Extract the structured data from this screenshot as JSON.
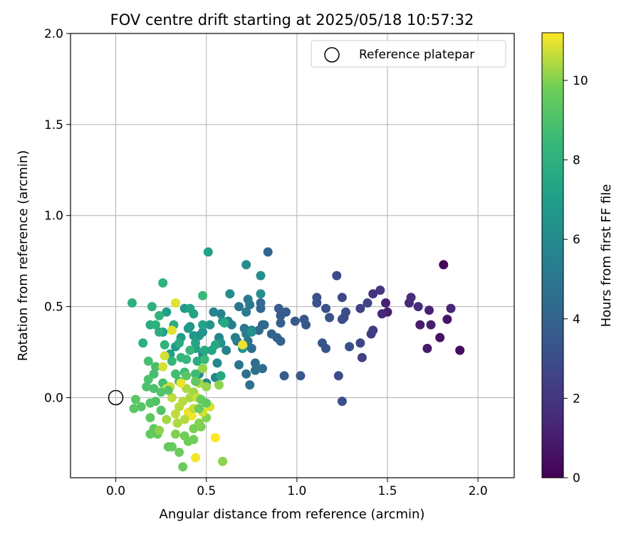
{
  "chart_data": {
    "type": "scatter",
    "title": "FOV centre drift starting at 2025/05/18 10:57:32",
    "xlabel": "Angular distance from reference (arcmin)",
    "ylabel": "Rotation from reference (arcmin)",
    "xlim": [
      -0.25,
      2.2
    ],
    "ylim": [
      -0.44,
      2.0
    ],
    "xticks": [
      0.0,
      0.5,
      1.0,
      1.5,
      2.0
    ],
    "xtick_labels": [
      "0.0",
      "0.5",
      "1.0",
      "1.5",
      "2.0"
    ],
    "yticks": [
      0.0,
      0.5,
      1.0,
      1.5,
      2.0
    ],
    "ytick_labels": [
      "0.0",
      "0.5",
      "1.0",
      "1.5",
      "2.0"
    ],
    "grid": true,
    "legend": {
      "position": "top-right",
      "entries": [
        "Reference platepar"
      ]
    },
    "colorbar": {
      "label": "Hours from first FF file",
      "range": [
        0,
        11.2
      ],
      "ticks": [
        0,
        2,
        4,
        6,
        8,
        10
      ],
      "tick_labels": [
        "0",
        "2",
        "4",
        "6",
        "8",
        "10"
      ],
      "colormap": "viridis"
    },
    "reference_point": {
      "x": 0.0,
      "y": 0.0
    },
    "points": [
      [
        1.81,
        0.73,
        0.2
      ],
      [
        1.9,
        0.26,
        0.4
      ],
      [
        1.79,
        0.33,
        0.6
      ],
      [
        1.83,
        0.43,
        0.8
      ],
      [
        1.72,
        0.27,
        0.9
      ],
      [
        1.68,
        0.4,
        1.0
      ],
      [
        1.74,
        0.4,
        1.1
      ],
      [
        1.73,
        0.48,
        1.2
      ],
      [
        1.85,
        0.49,
        1.3
      ],
      [
        1.62,
        0.52,
        1.5
      ],
      [
        1.67,
        0.5,
        1.6
      ],
      [
        1.63,
        0.55,
        1.6
      ],
      [
        1.5,
        0.47,
        1.0
      ],
      [
        1.49,
        0.52,
        1.2
      ],
      [
        1.47,
        0.46,
        1.4
      ],
      [
        1.42,
        0.57,
        1.9
      ],
      [
        1.46,
        0.59,
        2.0
      ],
      [
        1.41,
        0.35,
        2.2
      ],
      [
        1.42,
        0.37,
        2.3
      ],
      [
        1.35,
        0.49,
        2.4
      ],
      [
        1.36,
        0.22,
        2.5
      ],
      [
        1.39,
        0.52,
        2.6
      ],
      [
        1.35,
        0.3,
        2.7
      ],
      [
        1.25,
        0.55,
        2.7
      ],
      [
        1.26,
        0.44,
        2.8
      ],
      [
        1.27,
        0.47,
        2.9
      ],
      [
        1.22,
        0.67,
        2.9
      ],
      [
        1.25,
        0.43,
        3.0
      ],
      [
        1.23,
        0.12,
        3.0
      ],
      [
        1.25,
        -0.02,
        3.1
      ],
      [
        1.29,
        0.28,
        3.1
      ],
      [
        1.18,
        0.44,
        3.2
      ],
      [
        1.16,
        0.49,
        3.2
      ],
      [
        1.11,
        0.52,
        3.3
      ],
      [
        1.11,
        0.55,
        3.3
      ],
      [
        1.16,
        0.27,
        3.3
      ],
      [
        1.14,
        0.3,
        3.4
      ],
      [
        1.05,
        0.4,
        3.4
      ],
      [
        1.04,
        0.43,
        3.4
      ],
      [
        0.99,
        0.42,
        3.5
      ],
      [
        1.02,
        0.12,
        3.5
      ],
      [
        0.93,
        0.12,
        3.6
      ],
      [
        0.94,
        0.47,
        3.6
      ],
      [
        0.91,
        0.45,
        3.7
      ],
      [
        0.9,
        0.49,
        3.7
      ],
      [
        0.91,
        0.41,
        3.8
      ],
      [
        0.91,
        0.31,
        3.9
      ],
      [
        0.89,
        0.33,
        3.9
      ],
      [
        0.86,
        0.35,
        4.0
      ],
      [
        0.84,
        0.8,
        4.1
      ],
      [
        0.81,
        0.4,
        4.1
      ],
      [
        0.8,
        0.49,
        4.2
      ],
      [
        0.82,
        0.4,
        4.3
      ],
      [
        0.8,
        0.52,
        4.3
      ],
      [
        0.79,
        0.37,
        4.4
      ],
      [
        0.81,
        0.16,
        4.4
      ],
      [
        0.77,
        0.19,
        4.5
      ],
      [
        0.77,
        0.15,
        4.6
      ],
      [
        0.75,
        0.27,
        4.6
      ],
      [
        0.72,
        0.13,
        4.7
      ],
      [
        0.74,
        0.07,
        4.8
      ],
      [
        0.73,
        0.31,
        4.8
      ],
      [
        0.68,
        0.18,
        4.9
      ],
      [
        0.68,
        0.5,
        5.0
      ],
      [
        0.67,
        0.31,
        5.0
      ],
      [
        0.71,
        0.38,
        5.0
      ],
      [
        0.74,
        0.51,
        5.1
      ],
      [
        0.72,
        0.47,
        5.2
      ],
      [
        0.73,
        0.54,
        5.2
      ],
      [
        0.72,
        0.35,
        5.3
      ],
      [
        0.75,
        0.37,
        5.3
      ],
      [
        0.66,
        0.33,
        5.4
      ],
      [
        0.64,
        0.4,
        5.4
      ],
      [
        0.62,
        0.42,
        5.5
      ],
      [
        0.58,
        0.46,
        5.5
      ],
      [
        0.57,
        0.33,
        5.6
      ],
      [
        0.54,
        0.47,
        5.6
      ],
      [
        0.61,
        0.26,
        5.7
      ],
      [
        0.56,
        0.19,
        5.8
      ],
      [
        0.55,
        0.11,
        5.8
      ],
      [
        0.5,
        0.08,
        5.9
      ],
      [
        0.46,
        0.13,
        6.0
      ],
      [
        0.48,
        0.24,
        6.0
      ],
      [
        0.63,
        0.57,
        6.1
      ],
      [
        0.72,
        0.73,
        6.1
      ],
      [
        0.8,
        0.67,
        6.2
      ],
      [
        0.8,
        0.57,
        6.2
      ],
      [
        0.75,
        0.36,
        6.3
      ],
      [
        0.7,
        0.27,
        6.3
      ],
      [
        0.58,
        0.3,
        6.4
      ],
      [
        0.59,
        0.42,
        6.4
      ],
      [
        0.52,
        0.4,
        6.5
      ],
      [
        0.48,
        0.36,
        6.5
      ],
      [
        0.46,
        0.34,
        6.6
      ],
      [
        0.41,
        0.39,
        6.6
      ],
      [
        0.43,
        0.34,
        6.7
      ],
      [
        0.38,
        0.49,
        6.8
      ],
      [
        0.4,
        0.38,
        6.8
      ],
      [
        0.36,
        0.33,
        6.9
      ],
      [
        0.33,
        0.28,
        6.9
      ],
      [
        0.3,
        0.24,
        7.0
      ],
      [
        0.28,
        0.47,
        7.0
      ],
      [
        0.26,
        0.36,
        7.1
      ],
      [
        0.44,
        0.27,
        7.1
      ],
      [
        0.51,
        0.8,
        7.2
      ],
      [
        0.48,
        0.4,
        7.2
      ],
      [
        0.43,
        0.46,
        7.3
      ],
      [
        0.41,
        0.49,
        7.3
      ],
      [
        0.44,
        0.3,
        7.4
      ],
      [
        0.53,
        0.26,
        7.4
      ],
      [
        0.55,
        0.29,
        7.5
      ],
      [
        0.58,
        0.12,
        7.5
      ],
      [
        0.6,
        0.41,
        7.6
      ],
      [
        0.49,
        0.26,
        7.6
      ],
      [
        0.45,
        0.2,
        7.7
      ],
      [
        0.35,
        0.3,
        7.7
      ],
      [
        0.32,
        0.4,
        7.8
      ],
      [
        0.24,
        0.36,
        7.8
      ],
      [
        0.19,
        0.4,
        7.9
      ],
      [
        0.15,
        0.3,
        7.9
      ],
      [
        0.09,
        0.52,
        8.0
      ],
      [
        0.2,
        0.5,
        8.0
      ],
      [
        0.26,
        0.63,
        8.1
      ],
      [
        0.22,
        0.4,
        8.1
      ],
      [
        0.24,
        0.45,
        8.2
      ],
      [
        0.27,
        0.29,
        8.2
      ],
      [
        0.31,
        0.2,
        8.3
      ],
      [
        0.36,
        0.22,
        8.3
      ],
      [
        0.39,
        0.21,
        8.4
      ],
      [
        0.41,
        0.26,
        8.4
      ],
      [
        0.48,
        0.56,
        8.5
      ],
      [
        0.49,
        0.21,
        8.5
      ],
      [
        0.44,
        0.13,
        8.6
      ],
      [
        0.38,
        0.14,
        8.6
      ],
      [
        0.35,
        0.09,
        8.7
      ],
      [
        0.33,
        0.13,
        8.7
      ],
      [
        0.26,
        0.08,
        8.8
      ],
      [
        0.21,
        0.13,
        8.8
      ],
      [
        0.22,
        0.17,
        8.9
      ],
      [
        0.18,
        0.2,
        8.9
      ],
      [
        0.18,
        0.1,
        9.0
      ],
      [
        0.17,
        0.06,
        9.0
      ],
      [
        0.22,
        -0.02,
        9.1
      ],
      [
        0.25,
        -0.07,
        9.1
      ],
      [
        0.19,
        -0.03,
        9.2
      ],
      [
        0.14,
        -0.05,
        9.2
      ],
      [
        0.1,
        -0.06,
        9.3
      ],
      [
        0.11,
        -0.01,
        9.3
      ],
      [
        0.19,
        -0.11,
        9.4
      ],
      [
        0.21,
        -0.17,
        9.4
      ],
      [
        0.23,
        -0.2,
        9.5
      ],
      [
        0.19,
        -0.2,
        9.5
      ],
      [
        0.29,
        -0.27,
        9.6
      ],
      [
        0.31,
        -0.27,
        9.6
      ],
      [
        0.35,
        -0.3,
        9.7
      ],
      [
        0.37,
        -0.38,
        9.7
      ],
      [
        0.38,
        -0.21,
        9.8
      ],
      [
        0.43,
        -0.23,
        9.8
      ],
      [
        0.43,
        -0.17,
        9.9
      ],
      [
        0.47,
        -0.16,
        9.9
      ],
      [
        0.46,
        -0.14,
        10.0
      ],
      [
        0.5,
        -0.11,
        10.0
      ],
      [
        0.59,
        -0.35,
        10.1
      ],
      [
        0.57,
        0.07,
        10.1
      ],
      [
        0.48,
        0.16,
        10.2
      ],
      [
        0.5,
        0.06,
        10.2
      ],
      [
        0.46,
        0.08,
        10.3
      ],
      [
        0.43,
        0.03,
        10.3
      ],
      [
        0.41,
        0.0,
        10.4
      ],
      [
        0.39,
        0.05,
        10.4
      ],
      [
        0.37,
        -0.02,
        10.5
      ],
      [
        0.35,
        -0.05,
        10.5
      ],
      [
        0.33,
        -0.09,
        10.6
      ],
      [
        0.31,
        0.0,
        10.6
      ],
      [
        0.3,
        0.06,
        10.7
      ],
      [
        0.28,
        0.05,
        10.7
      ],
      [
        0.26,
        0.17,
        10.8
      ],
      [
        0.27,
        0.23,
        10.8
      ],
      [
        0.31,
        0.37,
        10.9
      ],
      [
        0.33,
        0.52,
        10.9
      ],
      [
        0.36,
        0.08,
        11.0
      ],
      [
        0.4,
        -0.08,
        11.0
      ],
      [
        0.42,
        -0.1,
        11.1
      ],
      [
        0.44,
        -0.33,
        11.1
      ],
      [
        0.55,
        -0.22,
        11.2
      ],
      [
        0.7,
        0.29,
        11.0
      ],
      [
        0.52,
        -0.05,
        10.9
      ],
      [
        0.48,
        -0.08,
        10.8
      ],
      [
        0.45,
        0.0,
        10.7
      ],
      [
        0.43,
        -0.06,
        10.6
      ],
      [
        0.38,
        -0.12,
        10.5
      ],
      [
        0.34,
        -0.14,
        10.4
      ],
      [
        0.28,
        -0.12,
        10.3
      ],
      [
        0.24,
        -0.18,
        10.1
      ],
      [
        0.33,
        -0.2,
        10.0
      ],
      [
        0.4,
        -0.24,
        9.8
      ],
      [
        0.46,
        -0.06,
        9.7
      ],
      [
        0.47,
        -0.01,
        9.6
      ],
      [
        0.5,
        -0.03,
        9.5
      ],
      [
        0.44,
        0.09,
        9.4
      ],
      [
        0.39,
        0.12,
        9.3
      ],
      [
        0.29,
        0.04,
        9.2
      ],
      [
        0.25,
        0.03,
        9.1
      ],
      [
        0.21,
        0.05,
        9.0
      ]
    ]
  }
}
